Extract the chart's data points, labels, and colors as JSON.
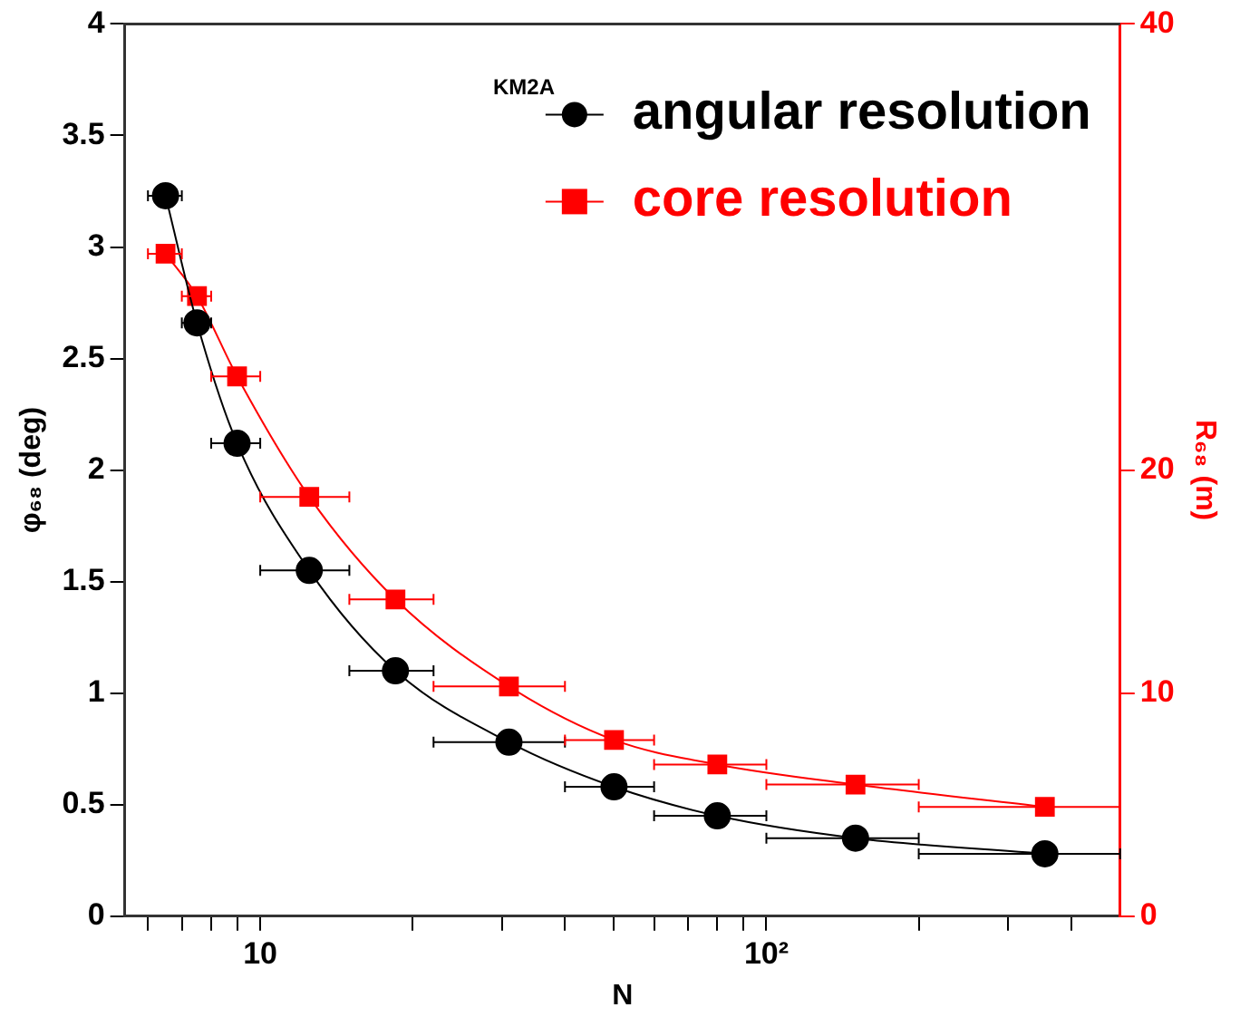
{
  "chart_data": {
    "type": "line",
    "xlabel": "N",
    "ylabel": "φ₆₈ (deg)",
    "y2label": "R₆₈ (m)",
    "annotations": [
      "KM2A"
    ],
    "log": "x",
    "grid": false,
    "legend": "top right",
    "line_style": "solid",
    "xlim": [
      5.4,
      500
    ],
    "xticks": [
      {
        "value": 6,
        "label": null
      },
      {
        "value": 7,
        "label": null
      },
      {
        "value": 8,
        "label": null
      },
      {
        "value": 9,
        "label": null
      },
      10,
      {
        "value": 20,
        "label": null
      },
      {
        "value": 30,
        "label": null
      },
      {
        "value": 40,
        "label": null
      },
      {
        "value": 50,
        "label": null
      },
      {
        "value": 60,
        "label": null
      },
      {
        "value": 70,
        "label": null
      },
      {
        "value": 80,
        "label": null
      },
      {
        "value": 90,
        "label": null
      },
      {
        "value": 100,
        "label": "10²"
      },
      {
        "value": 200,
        "label": null
      },
      {
        "value": 300,
        "label": null
      },
      {
        "value": 400,
        "label": null
      }
    ],
    "ylim": [
      0,
      4
    ],
    "yticks": [
      0,
      0.5,
      1,
      1.5,
      2,
      2.5,
      3,
      3.5,
      4
    ],
    "y2lim": [
      0,
      40
    ],
    "y2ticks": [
      0,
      10,
      20,
      40
    ],
    "series": [
      {
        "name": "angular resolution",
        "color": "#000000",
        "marker": "circle",
        "x": [
          6.5,
          7.5,
          9,
          12.5,
          18.5,
          31,
          50,
          80,
          150,
          355
        ],
        "values": [
          3.23,
          2.66,
          2.12,
          1.55,
          1.1,
          0.78,
          0.58,
          0.45,
          0.35,
          0.28
        ],
        "xerrors": [
          0.5,
          0.5,
          1,
          2.5,
          3.5,
          9,
          10,
          20,
          50,
          [
            200,
            500
          ]
        ]
      },
      {
        "name": "core resolution",
        "color": "#ff0000",
        "marker": "square",
        "axis": "y2",
        "x": [
          6.5,
          7.5,
          9,
          12.5,
          18.5,
          31,
          50,
          80,
          150,
          355
        ],
        "values": [
          29.7,
          27.8,
          24.2,
          18.8,
          14.2,
          10.3,
          7.9,
          6.8,
          5.9,
          4.9
        ],
        "xerrors": [
          0.5,
          0.5,
          1,
          2.5,
          3.5,
          9,
          10,
          20,
          50,
          [
            200,
            500
          ]
        ]
      }
    ]
  }
}
